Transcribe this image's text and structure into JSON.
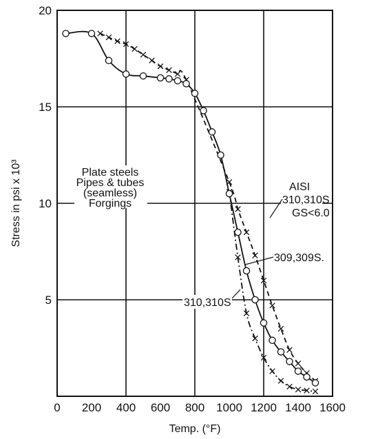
{
  "chart_data": {
    "type": "line",
    "xlabel": "Temp.  (°F)",
    "ylabel": "Stress in psi x 10³",
    "xlim": [
      0,
      1600
    ],
    "ylim": [
      0,
      20
    ],
    "xticks": [
      0,
      200,
      400,
      600,
      800,
      1000,
      1200,
      1400,
      1600
    ],
    "yticks": [
      5,
      10,
      15,
      20
    ],
    "grid": {
      "x": [
        400,
        800,
        1200
      ],
      "y": [
        5,
        10,
        15
      ]
    },
    "series": [
      {
        "name": "309, 309S",
        "style": "solid",
        "marker": "circle",
        "x": [
          50,
          200,
          300,
          400,
          500,
          600,
          650,
          700,
          750,
          800,
          850,
          900,
          950,
          1000,
          1050,
          1100,
          1150,
          1200,
          1250,
          1300,
          1350,
          1400,
          1450,
          1500
        ],
        "y": [
          18.8,
          18.8,
          17.4,
          16.7,
          16.6,
          16.5,
          16.45,
          16.35,
          16.2,
          15.7,
          14.8,
          13.7,
          12.5,
          10.5,
          8.5,
          6.5,
          5.0,
          3.8,
          2.9,
          2.3,
          1.8,
          1.3,
          1.0,
          0.7
        ]
      },
      {
        "name": "310, 310S GS<6.0",
        "style": "dashed",
        "marker": "x",
        "x": [
          250,
          300,
          350,
          400,
          450,
          500,
          550,
          600,
          650,
          700,
          750,
          1000,
          1050,
          1100,
          1150,
          1200,
          1250,
          1300,
          1350,
          1400,
          1450,
          1500
        ],
        "y": [
          18.8,
          18.6,
          18.4,
          18.25,
          18.0,
          17.7,
          17.4,
          17.1,
          16.9,
          16.7,
          16.4,
          11.1,
          9.7,
          8.5,
          7.3,
          6.0,
          4.7,
          3.5,
          2.4,
          1.7,
          1.2,
          0.8
        ]
      },
      {
        "name": "310, 310S",
        "style": "dash-dot",
        "marker": "x",
        "x": [
          1000,
          1050,
          1100,
          1150,
          1200,
          1250,
          1300,
          1350,
          1400,
          1450,
          1500
        ],
        "y": [
          10.6,
          7.2,
          4.3,
          3.0,
          2.0,
          1.3,
          0.8,
          0.5,
          0.35,
          0.3,
          0.25
        ]
      }
    ],
    "annotations": {
      "plate": "Plate steels",
      "pipes": "Pipes & tubes",
      "seamless": "(seamless)",
      "forgings": "Forgings",
      "aisi": "AISI",
      "s310_gs_a": "310,310S",
      "s310_gs_b": "GS<6.0",
      "s309": "309,309S.",
      "s310": "310,310S"
    }
  }
}
